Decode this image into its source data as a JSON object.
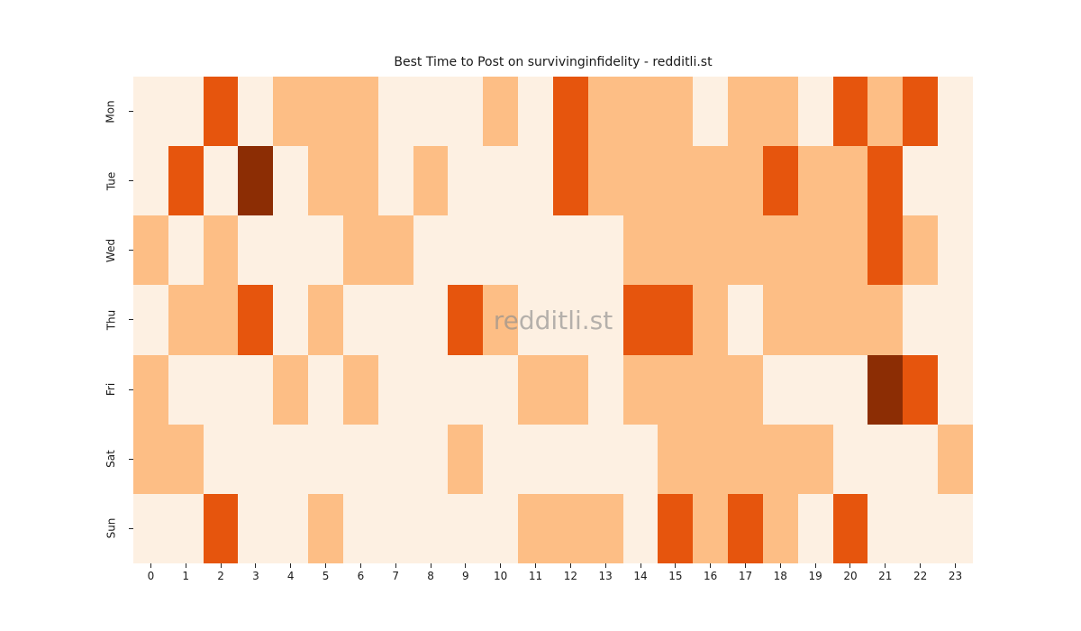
{
  "title": "Best Time to Post on survivinginfidelity - redditli.st",
  "watermark": "redditli.st",
  "chart_data": {
    "type": "heatmap",
    "title": "Best Time to Post on survivinginfidelity - redditli.st",
    "xlabel": "",
    "ylabel": "",
    "x_categories": [
      "0",
      "1",
      "2",
      "3",
      "4",
      "5",
      "6",
      "7",
      "8",
      "9",
      "10",
      "11",
      "12",
      "13",
      "14",
      "15",
      "16",
      "17",
      "18",
      "19",
      "20",
      "21",
      "22",
      "23"
    ],
    "y_categories": [
      "Mon",
      "Tue",
      "Wed",
      "Thu",
      "Fri",
      "Sat",
      "Sun"
    ],
    "values": [
      [
        0,
        0,
        2,
        0,
        1,
        1,
        1,
        0,
        0,
        0,
        1,
        0,
        2,
        1,
        1,
        1,
        0,
        1,
        1,
        0,
        2,
        1,
        2,
        0
      ],
      [
        0,
        2,
        0,
        3,
        0,
        1,
        1,
        0,
        1,
        0,
        0,
        0,
        2,
        1,
        1,
        1,
        1,
        1,
        2,
        1,
        1,
        2,
        0,
        0
      ],
      [
        1,
        0,
        1,
        0,
        0,
        0,
        1,
        1,
        0,
        0,
        0,
        0,
        0,
        0,
        1,
        1,
        1,
        1,
        1,
        1,
        1,
        2,
        1,
        0
      ],
      [
        0,
        1,
        1,
        2,
        0,
        1,
        0,
        0,
        0,
        2,
        1,
        0,
        0,
        0,
        2,
        2,
        1,
        0,
        1,
        1,
        1,
        1,
        0,
        0
      ],
      [
        1,
        0,
        0,
        0,
        1,
        0,
        1,
        0,
        0,
        0,
        0,
        1,
        1,
        0,
        1,
        1,
        1,
        1,
        0,
        0,
        0,
        3,
        2,
        0
      ],
      [
        1,
        1,
        0,
        0,
        0,
        0,
        0,
        0,
        0,
        1,
        0,
        0,
        0,
        0,
        0,
        1,
        1,
        1,
        1,
        1,
        0,
        0,
        0,
        1
      ],
      [
        0,
        0,
        2,
        0,
        0,
        1,
        0,
        0,
        0,
        0,
        0,
        1,
        1,
        1,
        0,
        2,
        1,
        2,
        1,
        0,
        2,
        0,
        0,
        0
      ]
    ],
    "value_levels": [
      0,
      1,
      2,
      3
    ],
    "palette": {
      "0": "#fdf0e2",
      "1": "#fdbe85",
      "2": "#e6550d",
      "3": "#8c2d04"
    },
    "colormap": "Oranges",
    "legend": "none",
    "grid": "off",
    "watermark": "redditli.st"
  }
}
